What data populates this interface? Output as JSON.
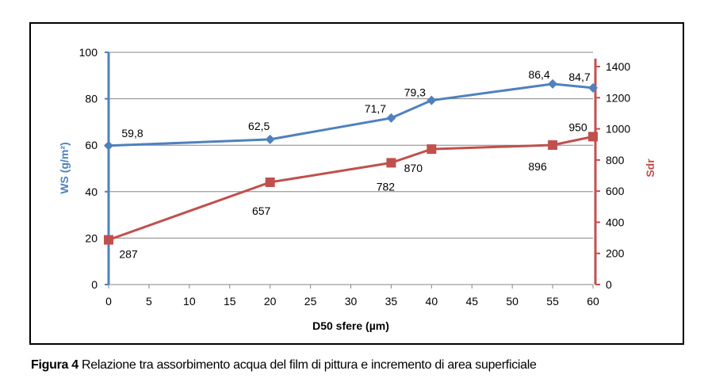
{
  "chart_data": {
    "type": "line",
    "xlabel": "D50 sfere (µm)",
    "ylabel_left": "WS (g/m²)",
    "ylabel_right": "Sdr",
    "xlim": [
      0,
      60
    ],
    "ylim_left": [
      0,
      100
    ],
    "ylim_right": [
      0,
      1400
    ],
    "x_ticks": [
      "0",
      "5",
      "10",
      "15",
      "20",
      "25",
      "30",
      "35",
      "40",
      "45",
      "50",
      "55",
      "60"
    ],
    "y_left_ticks": [
      "0",
      "20",
      "40",
      "60",
      "80",
      "100"
    ],
    "y_right_ticks": [
      "0",
      "200",
      "400",
      "600",
      "800",
      "1000",
      "1200",
      "1400"
    ],
    "grid": "horizontal",
    "x": [
      0,
      20,
      35,
      40,
      55,
      60
    ],
    "series": [
      {
        "axis": "left",
        "color": "#4F81BD",
        "marker": "diamond",
        "values": [
          59.8,
          62.5,
          71.7,
          79.3,
          86.4,
          84.7
        ],
        "labels": [
          "59,8",
          "62,5",
          "71,7",
          "79,3",
          "86,4",
          "84,7"
        ]
      },
      {
        "axis": "right",
        "color": "#C0504D",
        "marker": "square",
        "values": [
          287,
          657,
          782,
          870,
          896,
          950
        ],
        "labels": [
          "287",
          "657",
          "782",
          "870",
          "896",
          "950"
        ]
      }
    ]
  },
  "caption": {
    "label": "Figura 4",
    "text": " Relazione tra assorbimento acqua del film di pittura e incremento di area superficiale"
  }
}
